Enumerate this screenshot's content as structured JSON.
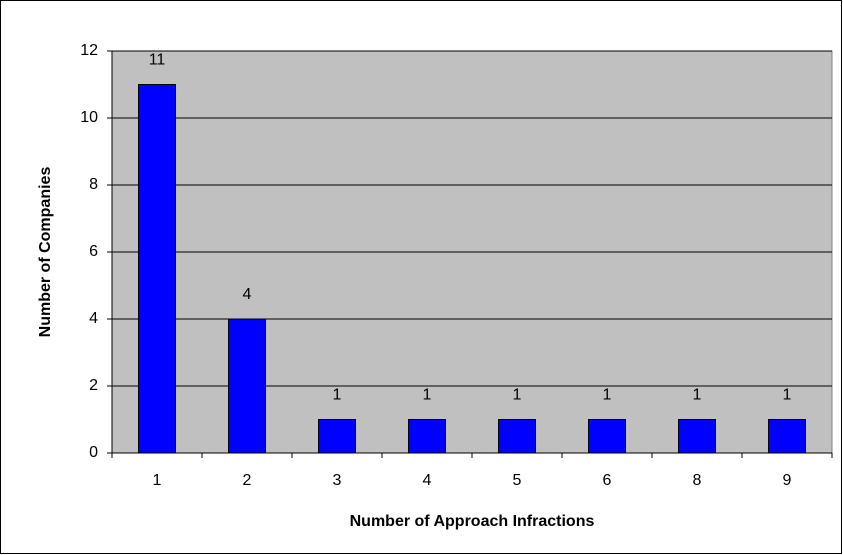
{
  "chart_data": {
    "type": "bar",
    "xlabel": "Number of Approach Infractions",
    "ylabel": "Number of Companies",
    "categories": [
      "1",
      "2",
      "3",
      "4",
      "5",
      "6",
      "8",
      "9"
    ],
    "values": [
      11,
      4,
      1,
      1,
      1,
      1,
      1,
      1
    ],
    "color": "#0000ff",
    "ylim": [
      0,
      12
    ],
    "yticks": [
      0,
      2,
      4,
      6,
      8,
      10,
      12
    ],
    "grid": true,
    "data_labels": true
  }
}
